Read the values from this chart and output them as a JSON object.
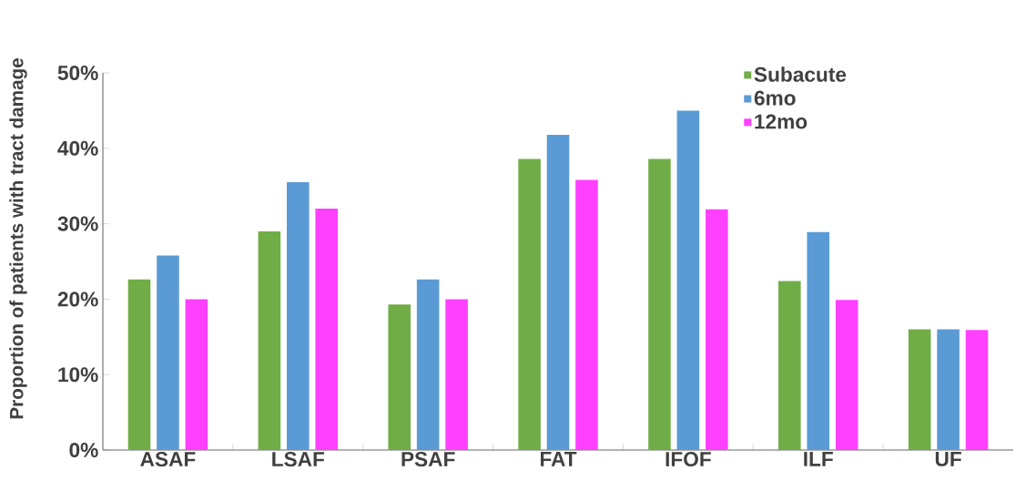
{
  "chart_data": {
    "type": "bar",
    "ylabel": "Proportion of patients with tract damage",
    "categories": [
      "ASAF",
      "LSAF",
      "PSAF",
      "FAT",
      "IFOF",
      "ILF",
      "UF"
    ],
    "series": [
      {
        "name": "Subacute",
        "color": "#70ad47",
        "values": [
          22.6,
          29.0,
          19.3,
          38.6,
          38.6,
          22.4,
          16.0
        ]
      },
      {
        "name": "6mo",
        "color": "#5b9bd5",
        "values": [
          25.8,
          35.5,
          22.6,
          41.8,
          45.0,
          28.9,
          16.0
        ]
      },
      {
        "name": "12mo",
        "color": "#ff40ff",
        "values": [
          20.0,
          32.0,
          20.0,
          35.8,
          31.9,
          19.9,
          15.9
        ]
      }
    ],
    "ylim": [
      0,
      50
    ],
    "yticks": [
      {
        "value": 0,
        "label": "0%"
      },
      {
        "value": 10,
        "label": "10%"
      },
      {
        "value": 20,
        "label": "20%"
      },
      {
        "value": 30,
        "label": "30%"
      },
      {
        "value": 40,
        "label": "40%"
      },
      {
        "value": 50,
        "label": "50%"
      }
    ],
    "legend": "top right"
  }
}
